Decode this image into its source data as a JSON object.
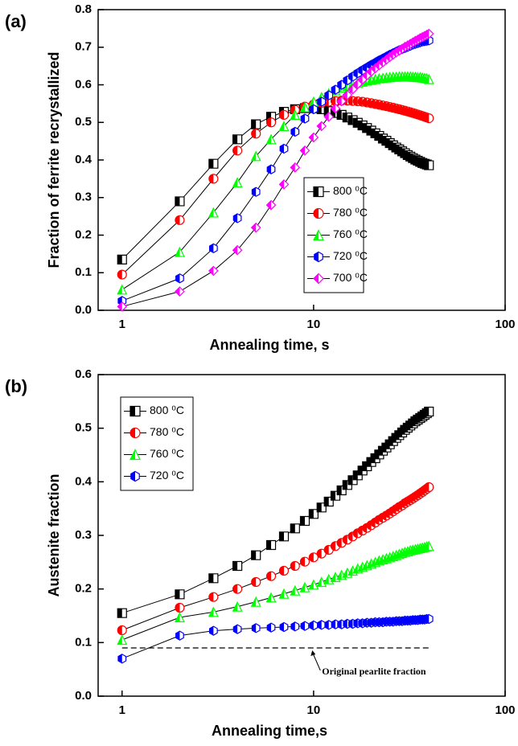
{
  "chart_data": [
    {
      "type": "line",
      "panel_label": "(a)",
      "xlabel": "Annealing time, s",
      "ylabel": "Fraction of ferrite recrystallized",
      "xscale": "log",
      "xlim": [
        0.75,
        100
      ],
      "xticks": [
        1,
        10,
        100
      ],
      "ylim": [
        0,
        0.8
      ],
      "yticks": [
        {
          "value": 0,
          "label": "0.0"
        },
        0.1,
        0.2,
        0.3,
        0.4,
        0.5,
        0.6,
        0.7,
        0.8
      ],
      "legend": "lower right",
      "line_color": "#000000",
      "x": [
        1,
        2,
        3,
        4,
        5,
        6,
        7,
        8,
        9,
        10,
        11,
        12,
        13,
        14,
        15,
        16,
        17,
        18,
        19,
        20,
        21,
        22,
        23,
        24,
        25,
        26,
        27,
        28,
        29,
        30,
        31,
        32,
        33,
        34,
        35,
        36,
        37,
        38,
        39,
        40
      ],
      "series": [
        {
          "name": "800 ⁰C",
          "color": "#000000",
          "marker": "square",
          "values": [
            0.135,
            0.29,
            0.39,
            0.455,
            0.495,
            0.515,
            0.528,
            0.535,
            0.538,
            0.538,
            0.535,
            0.53,
            0.525,
            0.52,
            0.513,
            0.506,
            0.499,
            0.492,
            0.485,
            0.478,
            0.471,
            0.464,
            0.457,
            0.451,
            0.445,
            0.439,
            0.433,
            0.428,
            0.423,
            0.418,
            0.413,
            0.409,
            0.405,
            0.401,
            0.398,
            0.395,
            0.392,
            0.39,
            0.388,
            0.386
          ]
        },
        {
          "name": "780 ⁰C",
          "color": "#ff0000",
          "marker": "circle",
          "values": [
            0.095,
            0.24,
            0.35,
            0.425,
            0.47,
            0.5,
            0.52,
            0.533,
            0.542,
            0.548,
            0.552,
            0.555,
            0.557,
            0.558,
            0.558,
            0.557,
            0.556,
            0.555,
            0.553,
            0.551,
            0.549,
            0.547,
            0.545,
            0.543,
            0.541,
            0.539,
            0.537,
            0.535,
            0.533,
            0.531,
            0.529,
            0.527,
            0.525,
            0.523,
            0.521,
            0.519,
            0.517,
            0.515,
            0.513,
            0.511
          ]
        },
        {
          "name": "760 ⁰C",
          "color": "#00ff00",
          "marker": "triangle",
          "values": [
            0.055,
            0.155,
            0.26,
            0.34,
            0.41,
            0.455,
            0.49,
            0.52,
            0.54,
            0.555,
            0.567,
            0.577,
            0.585,
            0.592,
            0.597,
            0.601,
            0.605,
            0.608,
            0.611,
            0.613,
            0.615,
            0.617,
            0.618,
            0.619,
            0.62,
            0.621,
            0.621,
            0.622,
            0.622,
            0.622,
            0.622,
            0.622,
            0.621,
            0.621,
            0.62,
            0.62,
            0.619,
            0.618,
            0.617,
            0.615
          ]
        },
        {
          "name": "720 ⁰C",
          "color": "#0000ff",
          "marker": "hexagon",
          "values": [
            0.025,
            0.085,
            0.165,
            0.245,
            0.315,
            0.375,
            0.43,
            0.475,
            0.51,
            0.535,
            0.555,
            0.572,
            0.587,
            0.6,
            0.612,
            0.622,
            0.631,
            0.639,
            0.646,
            0.653,
            0.659,
            0.665,
            0.67,
            0.675,
            0.68,
            0.684,
            0.688,
            0.692,
            0.695,
            0.698,
            0.701,
            0.704,
            0.707,
            0.709,
            0.711,
            0.713,
            0.715,
            0.716,
            0.717,
            0.718
          ]
        },
        {
          "name": "700 ⁰C",
          "color": "#ff00ff",
          "marker": "diamond",
          "values": [
            0.01,
            0.05,
            0.105,
            0.16,
            0.22,
            0.28,
            0.335,
            0.38,
            0.425,
            0.46,
            0.49,
            0.515,
            0.537,
            0.556,
            0.573,
            0.588,
            0.602,
            0.614,
            0.625,
            0.635,
            0.644,
            0.652,
            0.66,
            0.667,
            0.674,
            0.68,
            0.686,
            0.691,
            0.696,
            0.701,
            0.705,
            0.709,
            0.713,
            0.717,
            0.72,
            0.724,
            0.727,
            0.73,
            0.733,
            0.736
          ]
        }
      ]
    },
    {
      "type": "line",
      "panel_label": "(b)",
      "xlabel": "Annealing time,s",
      "ylabel": "Austenite fraction",
      "xscale": "log",
      "xlim": [
        0.75,
        100
      ],
      "xticks": [
        1,
        10,
        100
      ],
      "ylim": [
        0,
        0.6
      ],
      "yticks": [
        {
          "value": 0,
          "label": "0.0"
        },
        0.1,
        0.2,
        0.3,
        0.4,
        0.5,
        0.6
      ],
      "legend": "upper left",
      "line_color": "#000000",
      "reference_line": {
        "y": 0.09,
        "x": [
          1,
          40
        ],
        "label": "Original pearlite fraction"
      },
      "x": [
        1,
        2,
        3,
        4,
        5,
        6,
        7,
        8,
        9,
        10,
        11,
        12,
        13,
        14,
        15,
        16,
        17,
        18,
        19,
        20,
        21,
        22,
        23,
        24,
        25,
        26,
        27,
        28,
        29,
        30,
        31,
        32,
        33,
        34,
        35,
        36,
        37,
        38,
        39,
        40
      ],
      "series": [
        {
          "name": "800 ⁰C",
          "color": "#000000",
          "marker": "square",
          "values": [
            0.155,
            0.19,
            0.22,
            0.243,
            0.263,
            0.282,
            0.298,
            0.313,
            0.327,
            0.34,
            0.352,
            0.363,
            0.374,
            0.384,
            0.394,
            0.403,
            0.412,
            0.421,
            0.429,
            0.437,
            0.444,
            0.451,
            0.458,
            0.464,
            0.47,
            0.476,
            0.482,
            0.487,
            0.492,
            0.497,
            0.501,
            0.505,
            0.509,
            0.513,
            0.516,
            0.519,
            0.522,
            0.525,
            0.528,
            0.531
          ]
        },
        {
          "name": "780 ⁰C",
          "color": "#ff0000",
          "marker": "circle",
          "values": [
            0.123,
            0.165,
            0.185,
            0.2,
            0.213,
            0.224,
            0.234,
            0.243,
            0.251,
            0.259,
            0.266,
            0.273,
            0.28,
            0.286,
            0.292,
            0.298,
            0.304,
            0.309,
            0.314,
            0.319,
            0.324,
            0.329,
            0.333,
            0.337,
            0.341,
            0.345,
            0.349,
            0.353,
            0.356,
            0.36,
            0.363,
            0.366,
            0.369,
            0.372,
            0.375,
            0.378,
            0.381,
            0.384,
            0.387,
            0.39
          ]
        },
        {
          "name": "760 ⁰C",
          "color": "#00ff00",
          "marker": "triangle",
          "values": [
            0.105,
            0.147,
            0.157,
            0.167,
            0.176,
            0.184,
            0.191,
            0.197,
            0.203,
            0.208,
            0.213,
            0.218,
            0.222,
            0.226,
            0.23,
            0.234,
            0.238,
            0.241,
            0.244,
            0.247,
            0.25,
            0.253,
            0.255,
            0.257,
            0.259,
            0.261,
            0.263,
            0.265,
            0.267,
            0.269,
            0.27,
            0.272,
            0.273,
            0.274,
            0.275,
            0.276,
            0.277,
            0.278,
            0.279,
            0.28
          ]
        },
        {
          "name": "720 ⁰C",
          "color": "#0000ff",
          "marker": "hexagon",
          "values": [
            0.07,
            0.113,
            0.122,
            0.125,
            0.127,
            0.128,
            0.129,
            0.13,
            0.131,
            0.132,
            0.133,
            0.133,
            0.134,
            0.134,
            0.135,
            0.135,
            0.136,
            0.136,
            0.137,
            0.137,
            0.138,
            0.138,
            0.138,
            0.139,
            0.139,
            0.139,
            0.14,
            0.14,
            0.14,
            0.141,
            0.141,
            0.141,
            0.142,
            0.142,
            0.142,
            0.143,
            0.143,
            0.143,
            0.144,
            0.144
          ]
        }
      ]
    }
  ]
}
